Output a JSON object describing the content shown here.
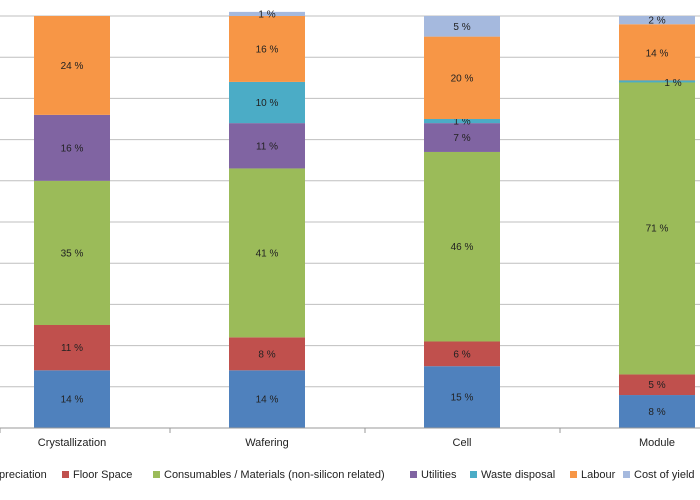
{
  "chart_data": {
    "type": "bar",
    "stacked": true,
    "categories": [
      "Crystallization",
      "Wafering",
      "Cell",
      "Module"
    ],
    "ylim": [
      0,
      100
    ],
    "grid": true,
    "legend_position": "bottom",
    "series": [
      {
        "name": "Depreciation",
        "color": "#4F81BD",
        "values": [
          14,
          14,
          15,
          8
        ],
        "labels": [
          "14 %",
          "14 %",
          "15 %",
          "8 %"
        ]
      },
      {
        "name": "Floor Space",
        "color": "#C0504D",
        "values": [
          11,
          8,
          6,
          5
        ],
        "labels": [
          "11 %",
          "8 %",
          "6 %",
          "5 %"
        ]
      },
      {
        "name": "Consumables / Materials (non-silicon related)",
        "color": "#9BBB59",
        "values": [
          35,
          41,
          46,
          71
        ],
        "labels": [
          "35 %",
          "41 %",
          "46 %",
          "71 %"
        ]
      },
      {
        "name": "Utilities",
        "color": "#8064A2",
        "values": [
          16,
          11,
          7,
          0
        ],
        "labels": [
          "16 %",
          "11 %",
          "7 %",
          ""
        ]
      },
      {
        "name": "Waste disposal",
        "color": "#4BACC6",
        "values": [
          0,
          10,
          1,
          0
        ],
        "labels": [
          "",
          "10 %",
          "1 %",
          ""
        ]
      },
      {
        "name": "Labour",
        "color": "#F79646",
        "values": [
          24,
          16,
          20,
          14
        ],
        "labels": [
          "24 %",
          "16 %",
          "20 %",
          "14 %"
        ]
      },
      {
        "name": "Cost of yield",
        "color": "#A5B9DE",
        "values": [
          0,
          1,
          5,
          2
        ],
        "labels": [
          "",
          "1 %",
          "5 %",
          "2 %"
        ]
      }
    ],
    "annotations": [
      {
        "category": "Module",
        "text": "1 %"
      }
    ]
  }
}
